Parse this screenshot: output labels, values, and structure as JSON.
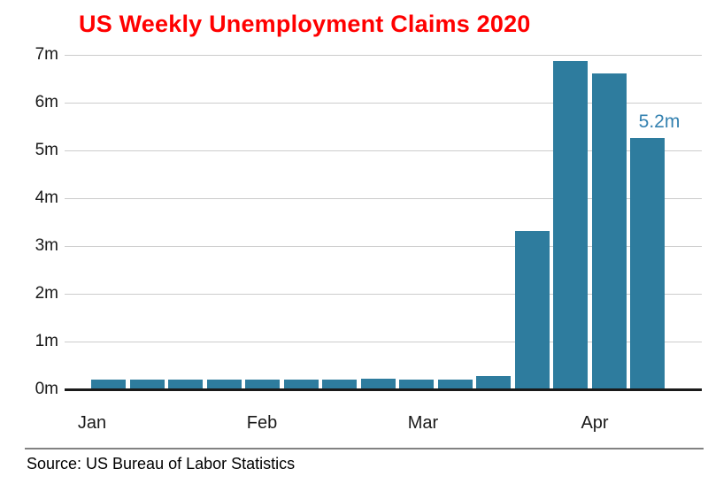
{
  "title": {
    "text": "US Weekly Unemployment Claims 2020"
  },
  "footer": {
    "source_text": "Source: US Bureau of Labor Statistics"
  },
  "colors": {
    "title": "#ff0000",
    "bar": "#2e7c9e",
    "annotation": "#3381b0",
    "grid": "#cccccc",
    "axis_line": "#1a1a1a",
    "tick_text": "#1a1a1a",
    "separator": "#828282",
    "background": "#ffffff"
  },
  "chart_data": {
    "type": "bar",
    "title": "US Weekly Unemployment Claims 2020",
    "unit": "millions of claims per week",
    "n_bars": 15,
    "values": [
      0.21,
      0.2,
      0.21,
      0.21,
      0.2,
      0.2,
      0.21,
      0.22,
      0.21,
      0.21,
      0.28,
      3.31,
      6.87,
      6.61,
      5.25
    ],
    "x_tick_labels": [
      "Jan",
      "Feb",
      "Mar",
      "Apr"
    ],
    "y_tick_labels": [
      "0m",
      "1m",
      "2m",
      "3m",
      "4m",
      "5m",
      "6m",
      "7m"
    ],
    "ylim": [
      0,
      7
    ],
    "grid": true,
    "legend": "none",
    "annotation": {
      "text": "5.2m",
      "bar_index": 14
    }
  }
}
